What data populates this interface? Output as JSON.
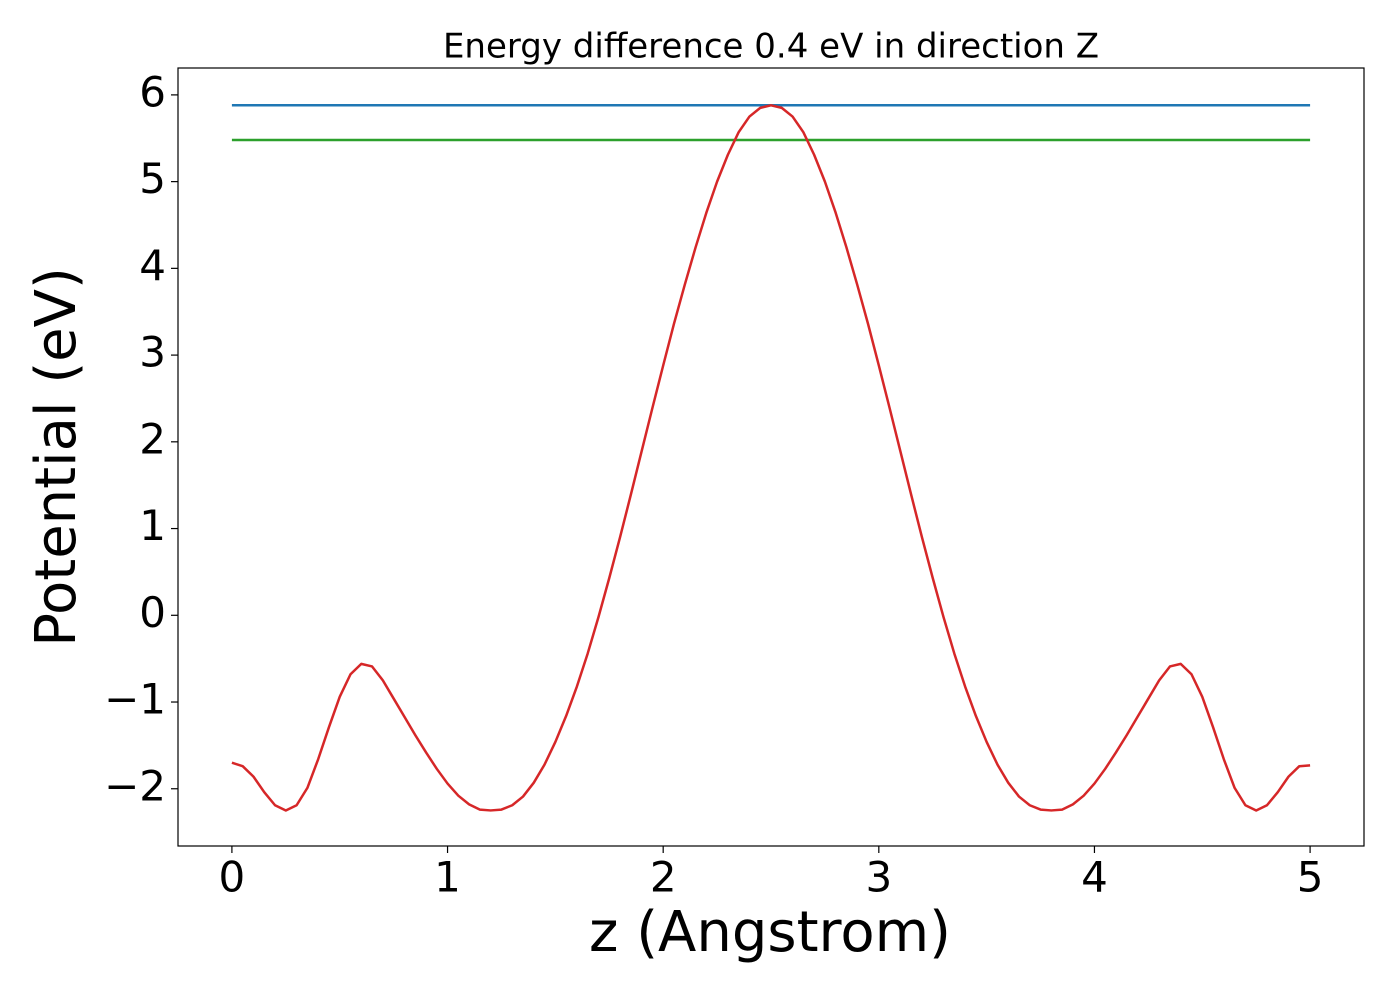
{
  "chart_data": {
    "type": "line",
    "title": "Energy difference 0.4 eV in direction Z",
    "xlabel": "z (Angstrom)",
    "ylabel": "Potential (eV)",
    "xlim": [
      -0.25,
      5.25
    ],
    "ylim": [
      -2.66,
      6.31
    ],
    "xticks": [
      0,
      1,
      2,
      3,
      4,
      5
    ],
    "yticks": [
      {
        "value": -2,
        "label": "−2"
      },
      {
        "value": -1,
        "label": "−1"
      },
      0,
      1,
      2,
      3,
      4,
      5,
      6
    ],
    "grid": false,
    "series": [
      {
        "color": "#1f77b4",
        "x": [
          0,
          5
        ],
        "values": [
          5.88,
          5.88
        ]
      },
      {
        "color": "#2ca02c",
        "x": [
          0,
          5
        ],
        "values": [
          5.48,
          5.48
        ]
      },
      {
        "color": "#d62728",
        "x": [
          0,
          0.05,
          0.1,
          0.15,
          0.2,
          0.25,
          0.3,
          0.35,
          0.4,
          0.45,
          0.5,
          0.55,
          0.6,
          0.65,
          0.7,
          0.75,
          0.8,
          0.85,
          0.9,
          0.95,
          1,
          1.05,
          1.1,
          1.15,
          1.2,
          1.25,
          1.3,
          1.35,
          1.4,
          1.45,
          1.5,
          1.55,
          1.6,
          1.65,
          1.7,
          1.75,
          1.8,
          1.85,
          1.9,
          1.95,
          2,
          2.05,
          2.1,
          2.15,
          2.2,
          2.25,
          2.3,
          2.35,
          2.4,
          2.45,
          2.5,
          2.55,
          2.6,
          2.65,
          2.7,
          2.75,
          2.8,
          2.85,
          2.9,
          2.95,
          3,
          3.05,
          3.1,
          3.15,
          3.2,
          3.25,
          3.3,
          3.35,
          3.4,
          3.45,
          3.5,
          3.55,
          3.6,
          3.65,
          3.7,
          3.75,
          3.8,
          3.85,
          3.9,
          3.95,
          4,
          4.05,
          4.1,
          4.15,
          4.2,
          4.25,
          4.3,
          4.35,
          4.4,
          4.45,
          4.5,
          4.55,
          4.6,
          4.65,
          4.7,
          4.75,
          4.8,
          4.85,
          4.9,
          4.95,
          5
        ],
        "values": [
          -1.7,
          -1.74,
          -1.86,
          -2.04,
          -2.19,
          -2.25,
          -2.19,
          -1.99,
          -1.66,
          -1.29,
          -0.94,
          -0.68,
          -0.56,
          -0.59,
          -0.75,
          -0.96,
          -1.17,
          -1.38,
          -1.58,
          -1.77,
          -1.94,
          -2.08,
          -2.18,
          -2.24,
          -2.25,
          -2.24,
          -2.19,
          -2.09,
          -1.93,
          -1.72,
          -1.46,
          -1.16,
          -0.82,
          -0.44,
          -0.02,
          0.43,
          0.9,
          1.39,
          1.89,
          2.39,
          2.88,
          3.36,
          3.81,
          4.24,
          4.64,
          5.0,
          5.31,
          5.57,
          5.75,
          5.85,
          5.88,
          5.85,
          5.75,
          5.57,
          5.31,
          5.0,
          4.64,
          4.24,
          3.81,
          3.36,
          2.88,
          2.39,
          1.89,
          1.39,
          0.9,
          0.43,
          -0.02,
          -0.44,
          -0.82,
          -1.16,
          -1.46,
          -1.72,
          -1.93,
          -2.09,
          -2.19,
          -2.24,
          -2.25,
          -2.24,
          -2.18,
          -2.08,
          -1.94,
          -1.77,
          -1.58,
          -1.38,
          -1.17,
          -0.96,
          -0.75,
          -0.59,
          -0.56,
          -0.68,
          -0.94,
          -1.29,
          -1.66,
          -1.99,
          -2.19,
          -2.25,
          -2.19,
          -2.04,
          -1.86,
          -1.74,
          -1.73
        ]
      }
    ]
  }
}
